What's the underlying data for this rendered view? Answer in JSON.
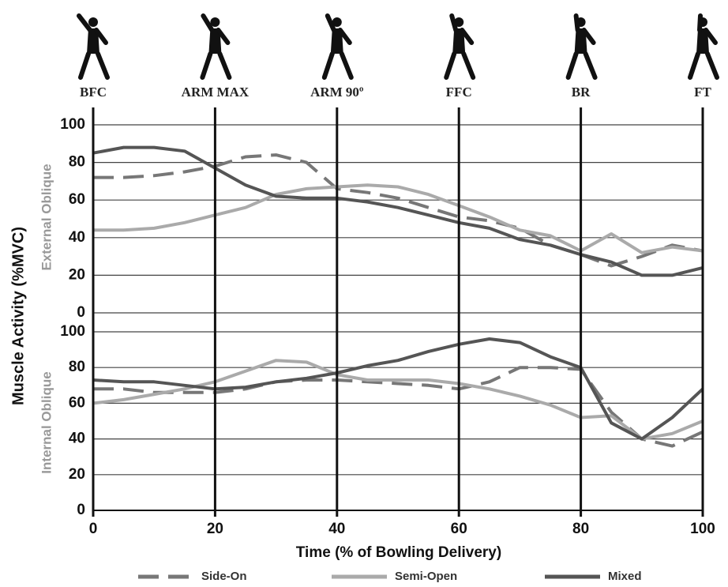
{
  "chart_data": [
    {
      "type": "line",
      "ylabel": "Muscle Activity (%MVC)",
      "panel_label": "External Oblique",
      "annotations": [
        {
          "x": 0,
          "label": "BFC"
        },
        {
          "x": 20,
          "label": "ARM  MAX"
        },
        {
          "x": 40,
          "label": "ARM 90º"
        },
        {
          "x": 60,
          "label": "FFC"
        },
        {
          "x": 80,
          "label": "BR"
        },
        {
          "x": 100,
          "label": "FT"
        }
      ],
      "x": [
        0,
        5,
        10,
        15,
        20,
        25,
        30,
        35,
        40,
        45,
        50,
        55,
        60,
        65,
        70,
        75,
        80,
        85,
        90,
        95,
        100
      ],
      "series": [
        {
          "name": "Side-On",
          "color": "#777777",
          "dash": true,
          "values": [
            72,
            72,
            73,
            75,
            78,
            83,
            84,
            80,
            66,
            64,
            61,
            56,
            51,
            49,
            45,
            36,
            31,
            25,
            30,
            36,
            33
          ]
        },
        {
          "name": "Semi-Open",
          "color": "#aaaaaa",
          "dash": false,
          "values": [
            44,
            44,
            45,
            48,
            52,
            56,
            63,
            66,
            67,
            68,
            67,
            63,
            57,
            51,
            44,
            41,
            33,
            42,
            32,
            35,
            33
          ]
        },
        {
          "name": "Mixed",
          "color": "#555555",
          "dash": false,
          "values": [
            85,
            88,
            88,
            86,
            77,
            68,
            62,
            61,
            61,
            59,
            56,
            52,
            48,
            45,
            39,
            36,
            31,
            27,
            20,
            20,
            24
          ]
        }
      ],
      "xlim": [
        0,
        100
      ],
      "ylim": [
        0,
        100
      ],
      "yticks": [
        0,
        20,
        40,
        60,
        80,
        100
      ],
      "grid": true
    },
    {
      "type": "line",
      "panel_label": "Internal Oblique",
      "xlabel": "Time (% of Bowling Delivery)",
      "x": [
        0,
        5,
        10,
        15,
        20,
        25,
        30,
        35,
        40,
        45,
        50,
        55,
        60,
        65,
        70,
        75,
        80,
        85,
        90,
        95,
        100
      ],
      "series": [
        {
          "color": "#777777",
          "dash": true,
          "values": [
            68,
            68,
            66,
            66,
            66,
            68,
            72,
            73,
            73,
            72,
            71,
            70,
            68,
            72,
            80,
            80,
            79,
            55,
            40,
            36,
            44
          ]
        },
        {
          "color": "#aaaaaa",
          "dash": false,
          "values": [
            60,
            62,
            65,
            68,
            72,
            78,
            84,
            83,
            76,
            73,
            73,
            73,
            71,
            68,
            64,
            59,
            52,
            53,
            40,
            43,
            50
          ]
        },
        {
          "color": "#555555",
          "dash": false,
          "values": [
            73,
            72,
            72,
            70,
            68,
            69,
            72,
            74,
            77,
            81,
            84,
            89,
            93,
            96,
            94,
            86,
            80,
            49,
            40,
            52,
            68
          ]
        }
      ],
      "xlim": [
        0,
        100
      ],
      "ylim": [
        0,
        100
      ],
      "yticks": [
        0,
        20,
        40,
        60,
        80,
        100
      ],
      "xticks": [
        0,
        20,
        40,
        60,
        80,
        100
      ],
      "grid": true
    }
  ]
}
